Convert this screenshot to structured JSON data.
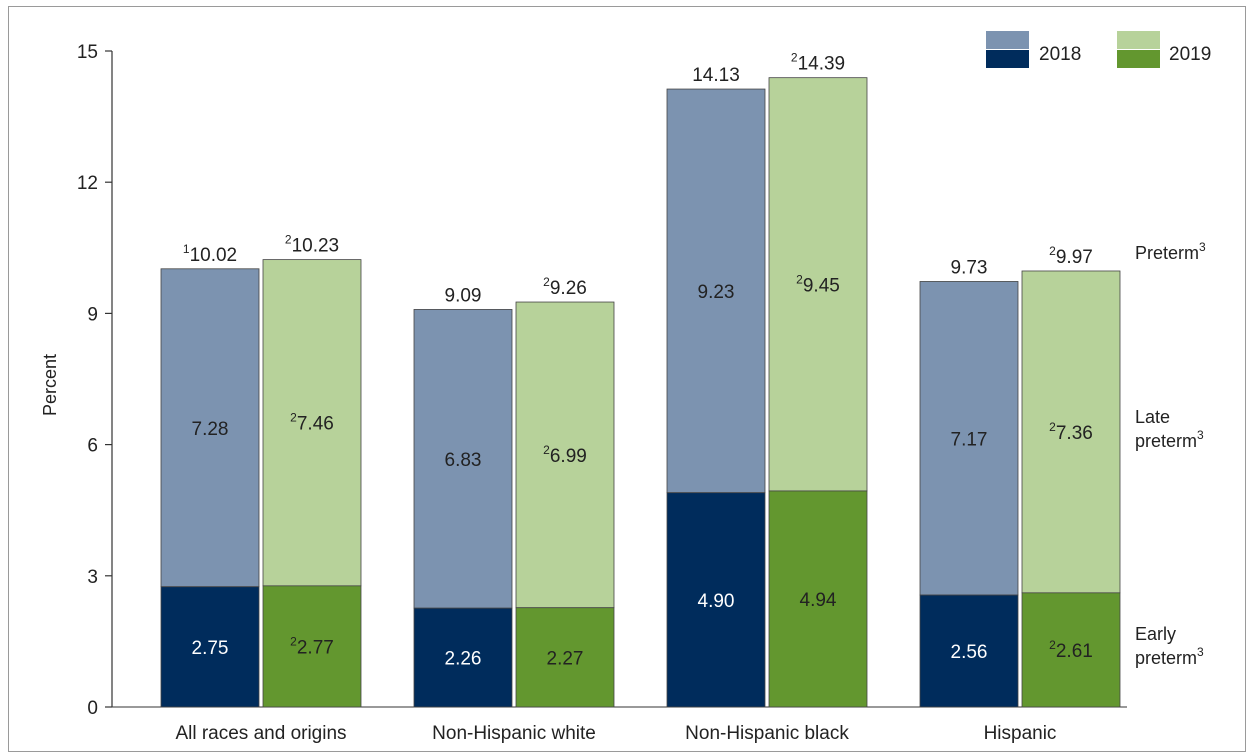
{
  "chart_data": {
    "type": "bar",
    "stacked": true,
    "ylabel": "Percent",
    "ylim": [
      0,
      15
    ],
    "yticks": [
      0,
      3,
      6,
      9,
      12,
      15
    ],
    "categories": [
      "All races and origins",
      "Non-Hispanic white",
      "Non-Hispanic black",
      "Hispanic"
    ],
    "series": [
      {
        "name": "2018",
        "colors": {
          "early": "#002c5c",
          "late": "#7c93b0"
        },
        "early": [
          2.75,
          2.26,
          4.9,
          2.56
        ],
        "late": [
          7.28,
          6.83,
          9.23,
          7.17
        ],
        "total": [
          10.02,
          9.09,
          14.13,
          9.73
        ],
        "early_labels": [
          "2.75",
          "2.26",
          "4.90",
          "2.56"
        ],
        "late_labels": [
          "7.28",
          "6.83",
          "9.23",
          "7.17"
        ],
        "total_labels": [
          "10.02",
          "9.09",
          "14.13",
          "9.73"
        ],
        "early_sup": [
          "",
          "",
          "",
          ""
        ],
        "late_sup": [
          "",
          "",
          "",
          ""
        ],
        "total_sup": [
          "1",
          "",
          "",
          ""
        ]
      },
      {
        "name": "2019",
        "colors": {
          "early": "#63972f",
          "late": "#b7d29a"
        },
        "early": [
          2.77,
          2.27,
          4.94,
          2.61
        ],
        "late": [
          7.46,
          6.99,
          9.45,
          7.36
        ],
        "total": [
          10.23,
          9.26,
          14.39,
          9.97
        ],
        "early_labels": [
          "2.77",
          "2.27",
          "4.94",
          "2.61"
        ],
        "late_labels": [
          "7.46",
          "6.99",
          "9.45",
          "7.36"
        ],
        "total_labels": [
          "10.23",
          "9.26",
          "14.39",
          "9.97"
        ],
        "early_sup": [
          "2",
          "",
          "",
          "2"
        ],
        "late_sup": [
          "2",
          "2",
          "2",
          "2"
        ],
        "total_sup": [
          "2",
          "2",
          "2",
          "2"
        ]
      }
    ],
    "side_labels": {
      "preterm": {
        "text": "Preterm",
        "sup": "3"
      },
      "late": {
        "line1": "Late",
        "line2": "preterm",
        "sup": "3"
      },
      "early": {
        "line1": "Early",
        "line2": "preterm",
        "sup": "3"
      }
    },
    "legend": {
      "position": "top-right",
      "items": [
        "2018",
        "2019"
      ]
    }
  }
}
